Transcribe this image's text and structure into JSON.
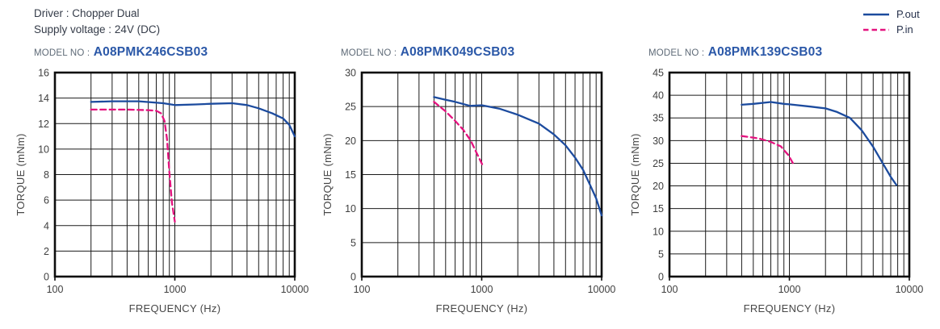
{
  "header": {
    "driver": "Driver : Chopper Dual",
    "supply_voltage": "Supply voltage : 24V (DC)"
  },
  "legend": {
    "items": [
      {
        "label": "P.out",
        "color": "#1c4b9e",
        "style": "solid"
      },
      {
        "label": "P.in",
        "color": "#e4137f",
        "style": "dashed"
      }
    ]
  },
  "colors": {
    "model_no": "#2b58a8",
    "pout_line": "#1c4b9e",
    "pin_line": "#e4137f"
  },
  "chart_data": [
    {
      "type": "line",
      "model_label": "MODEL NO :",
      "model_no": "A08PMK246CSB03",
      "xlabel": "FREQUENCY (Hz)",
      "ylabel": "TORQUE (mNm)",
      "xscale": "log",
      "xlim": [
        100,
        10000
      ],
      "ylim": [
        0,
        16
      ],
      "ytick_step": 2,
      "xticks": [
        100,
        1000,
        10000
      ],
      "grid": true,
      "series": [
        {
          "name": "P.out",
          "style": "solid",
          "color": "#1c4b9e",
          "points": [
            [
              200,
              13.7
            ],
            [
              300,
              13.75
            ],
            [
              500,
              13.75
            ],
            [
              800,
              13.6
            ],
            [
              1000,
              13.45
            ],
            [
              1500,
              13.5
            ],
            [
              2000,
              13.55
            ],
            [
              3000,
              13.6
            ],
            [
              4000,
              13.45
            ],
            [
              5000,
              13.2
            ],
            [
              6500,
              12.8
            ],
            [
              8000,
              12.4
            ],
            [
              9000,
              11.9
            ],
            [
              10000,
              11.0
            ]
          ]
        },
        {
          "name": "P.in",
          "style": "dashed",
          "color": "#e4137f",
          "points": [
            [
              200,
              13.1
            ],
            [
              400,
              13.1
            ],
            [
              600,
              13.05
            ],
            [
              700,
              13.0
            ],
            [
              770,
              12.8
            ],
            [
              820,
              12.2
            ],
            [
              860,
              10.8
            ],
            [
              900,
              8.2
            ],
            [
              945,
              5.8
            ],
            [
              1000,
              4.3
            ]
          ]
        }
      ]
    },
    {
      "type": "line",
      "model_label": "MODEL NO :",
      "model_no": "A08PMK049CSB03",
      "xlabel": "FREQUENCY (Hz)",
      "ylabel": "TORQUE (mNm)",
      "xscale": "log",
      "xlim": [
        100,
        10000
      ],
      "ylim": [
        0,
        30
      ],
      "ytick_step": 5,
      "xticks": [
        100,
        1000,
        10000
      ],
      "grid": true,
      "series": [
        {
          "name": "P.out",
          "style": "solid",
          "color": "#1c4b9e",
          "points": [
            [
              400,
              26.4
            ],
            [
              500,
              26.0
            ],
            [
              600,
              25.7
            ],
            [
              800,
              25.1
            ],
            [
              1000,
              25.2
            ],
            [
              1400,
              24.7
            ],
            [
              2000,
              23.8
            ],
            [
              3000,
              22.5
            ],
            [
              4000,
              20.9
            ],
            [
              5000,
              19.3
            ],
            [
              6000,
              17.5
            ],
            [
              7000,
              15.7
            ],
            [
              8000,
              13.5
            ],
            [
              9000,
              11.5
            ],
            [
              10000,
              9.0
            ]
          ]
        },
        {
          "name": "P.in",
          "style": "dashed",
          "color": "#e4137f",
          "points": [
            [
              400,
              25.7
            ],
            [
              500,
              24.3
            ],
            [
              600,
              22.9
            ],
            [
              700,
              21.6
            ],
            [
              810,
              20.0
            ],
            [
              900,
              18.3
            ],
            [
              1030,
              16.2
            ]
          ]
        }
      ]
    },
    {
      "type": "line",
      "model_label": "MODEL NO :",
      "model_no": "A08PMK139CSB03",
      "xlabel": "FREQUENCY (Hz)",
      "ylabel": "TORQUE (mNm)",
      "xscale": "log",
      "xlim": [
        100,
        10000
      ],
      "ylim": [
        0,
        45
      ],
      "ytick_step": 5,
      "xticks": [
        100,
        1000,
        10000
      ],
      "grid": true,
      "series": [
        {
          "name": "P.out",
          "style": "solid",
          "color": "#1c4b9e",
          "points": [
            [
              400,
              37.9
            ],
            [
              500,
              38.1
            ],
            [
              700,
              38.5
            ],
            [
              900,
              38.1
            ],
            [
              1000,
              38.0
            ],
            [
              1500,
              37.5
            ],
            [
              2000,
              37.1
            ],
            [
              2500,
              36.3
            ],
            [
              3200,
              35.0
            ],
            [
              4000,
              32.3
            ],
            [
              5000,
              28.6
            ],
            [
              6000,
              25.0
            ],
            [
              7000,
              22.0
            ],
            [
              7800,
              20.2
            ]
          ]
        },
        {
          "name": "P.in",
          "style": "dashed",
          "color": "#e4137f",
          "points": [
            [
              400,
              31.0
            ],
            [
              550,
              30.5
            ],
            [
              700,
              29.7
            ],
            [
              850,
              28.7
            ],
            [
              980,
              26.8
            ],
            [
              1070,
              25.0
            ]
          ]
        }
      ]
    }
  ]
}
